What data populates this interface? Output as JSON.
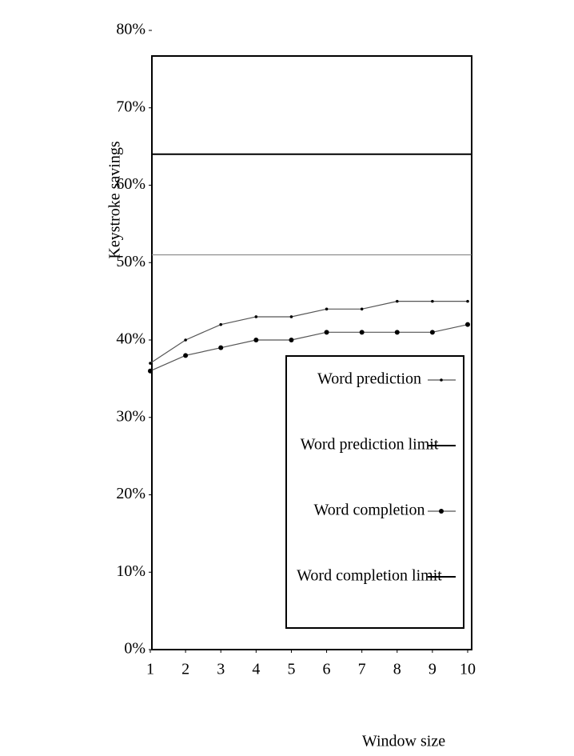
{
  "chart_data": {
    "type": "line",
    "x_label": "Window size",
    "y_label": "Keystroke savings",
    "x": [
      1,
      2,
      3,
      4,
      5,
      6,
      7,
      8,
      9,
      10
    ],
    "xlim": [
      1,
      10
    ],
    "xticks": [
      1,
      2,
      3,
      4,
      5,
      6,
      7,
      8,
      9,
      10
    ],
    "ylim": [
      0,
      80
    ],
    "yticks": [
      {
        "value": 0,
        "label": "0%"
      },
      {
        "value": 10,
        "label": "10%"
      },
      {
        "value": 20,
        "label": "20%"
      },
      {
        "value": 30,
        "label": "30%"
      },
      {
        "value": 40,
        "label": "40%"
      },
      {
        "value": 50,
        "label": "50%"
      },
      {
        "value": 60,
        "label": "60%"
      },
      {
        "value": 70,
        "label": "70%"
      },
      {
        "value": 80,
        "label": "80%"
      }
    ],
    "series": [
      {
        "name": "Word prediction",
        "color": "#555555",
        "marker": "small",
        "values": [
          37,
          40,
          42,
          43,
          43,
          44,
          44,
          45,
          45,
          45
        ]
      },
      {
        "name": "Word prediction limit",
        "color": "#000000",
        "marker": "none",
        "values": [
          64,
          64,
          64,
          64,
          64,
          64,
          64,
          64,
          64,
          64
        ]
      },
      {
        "name": "Word completion",
        "color": "#555555",
        "marker": "large",
        "values": [
          36,
          38,
          39,
          40,
          40,
          41,
          41,
          41,
          41,
          42
        ]
      },
      {
        "name": "Word completion limit",
        "color": "#888888",
        "marker": "none",
        "values": [
          51,
          51,
          51,
          51,
          51,
          51,
          51,
          51,
          51,
          51
        ]
      }
    ]
  }
}
